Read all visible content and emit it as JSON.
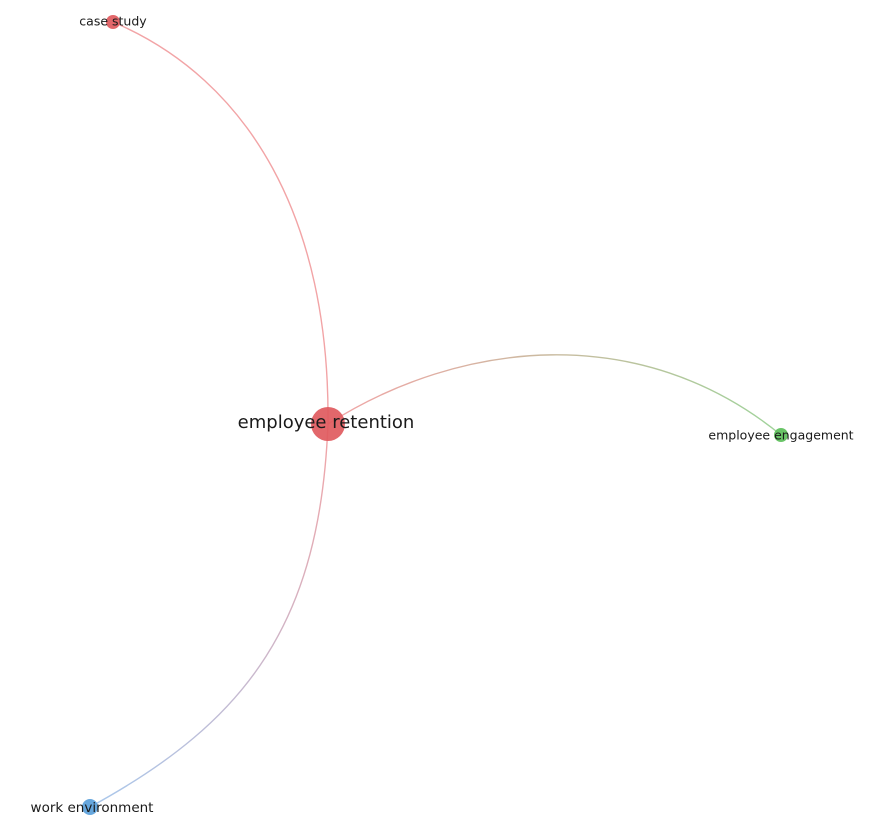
{
  "diagram": {
    "type": "network",
    "colors": {
      "red": "#e05a5e",
      "green": "#5cbf5a",
      "blue": "#5aa0da",
      "link_red": "#f2a4a6",
      "link_green": "#9fd39a",
      "link_blue": "#a9c8ec"
    },
    "nodes": [
      {
        "id": "employee-retention",
        "label": "employee retention",
        "cluster": "red"
      },
      {
        "id": "case-study",
        "label": "case study",
        "cluster": "red"
      },
      {
        "id": "employee-engagement",
        "label": "employee engagement",
        "cluster": "green"
      },
      {
        "id": "work-environment",
        "label": "work environment",
        "cluster": "blue"
      }
    ],
    "edges": [
      {
        "from": "employee-retention",
        "to": "case-study"
      },
      {
        "from": "employee-retention",
        "to": "employee-engagement"
      },
      {
        "from": "employee-retention",
        "to": "work-environment"
      }
    ]
  }
}
